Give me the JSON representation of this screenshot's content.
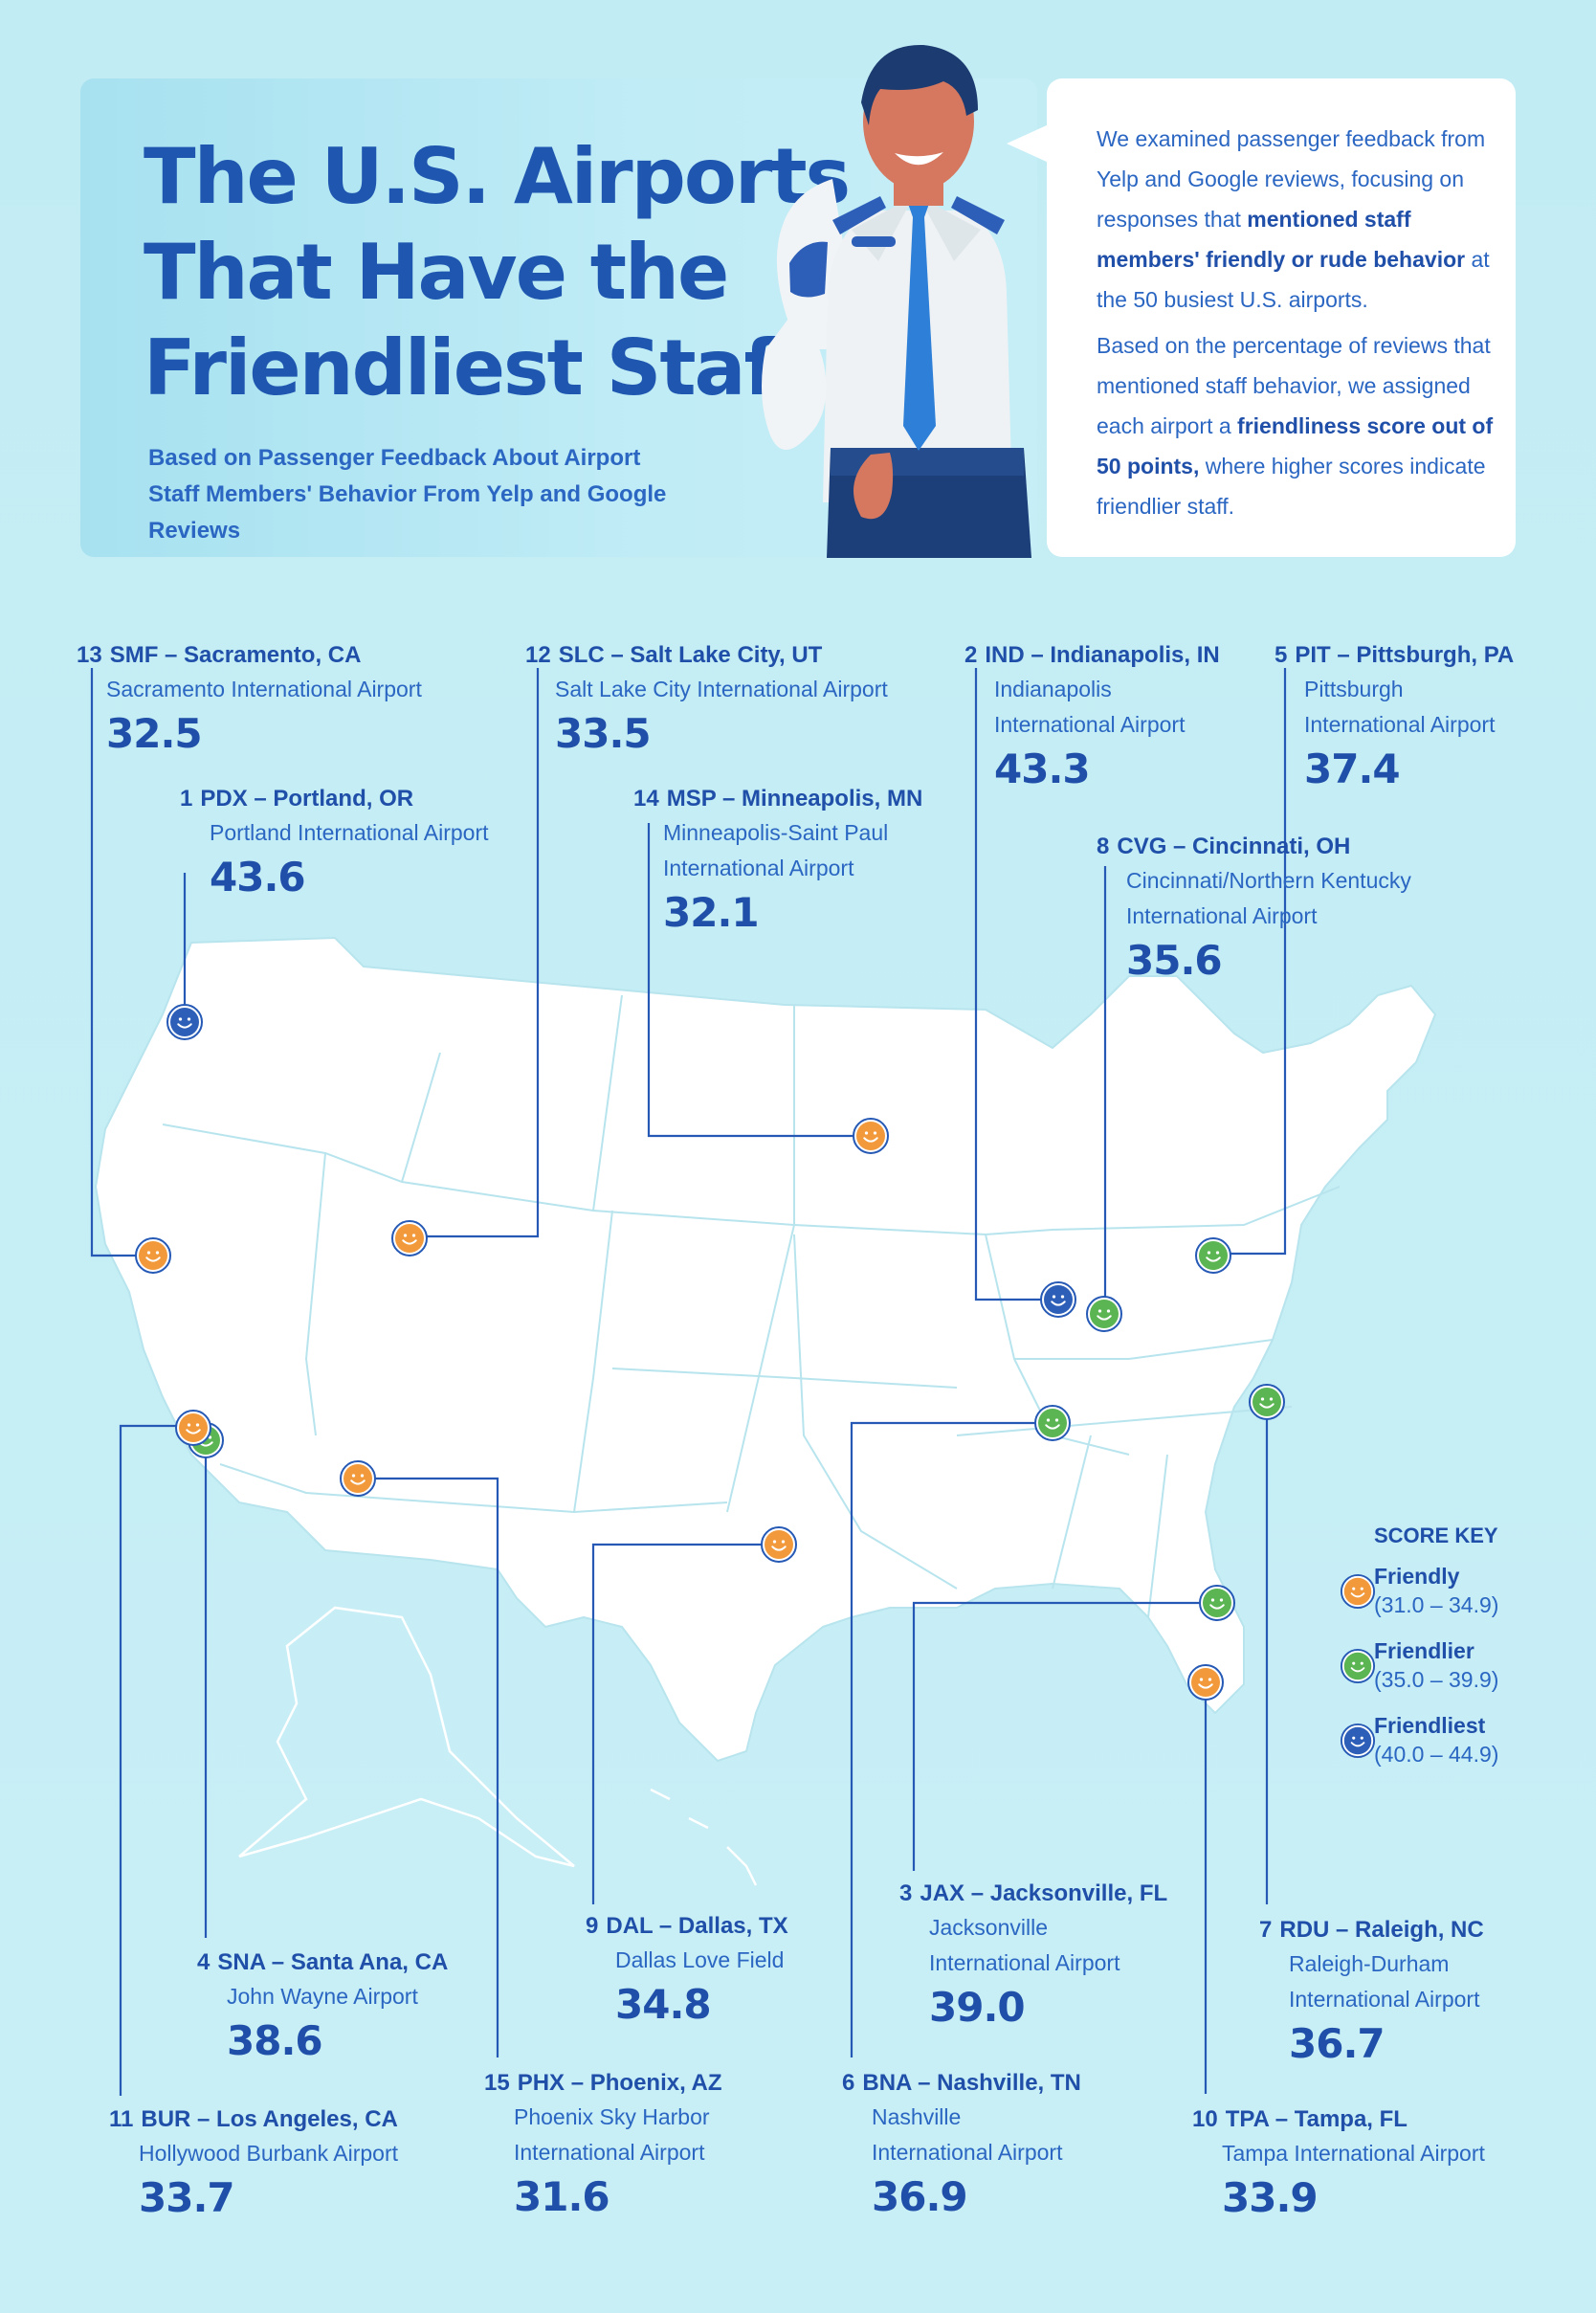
{
  "title_lines": [
    "The U.S. Airports",
    "That Have the",
    "Friendliest Staff"
  ],
  "subtitle": "Based on Passenger Feedback About Airport Staff Members' Behavior From Yelp and Google Reviews",
  "intro": {
    "p1_pre": "We examined passenger feedback from Yelp and Google reviews, focusing on responses that ",
    "p1_bold": "mentioned staff members' friendly or rude behavior",
    "p1_post": " at the 50 busiest U.S. airports.",
    "p2_pre": "Based on the percentage of reviews that mentioned staff behavior, we assigned each airport a ",
    "p2_bold": "friendliness score out of 50 points,",
    "p2_post": " where higher scores indicate friendlier staff."
  },
  "colors": {
    "friendly": "#f29a3b",
    "friendlier": "#5ab552",
    "friendliest": "#2d5fb8",
    "text": "#1f4fa8",
    "map": "#ffffff",
    "background": "#c2ecf4"
  },
  "airports": [
    {
      "rank": "1",
      "head": "PDX – Portland, OR",
      "name": "Portland International Airport",
      "score": "43.6",
      "category": "friendliest"
    },
    {
      "rank": "2",
      "head": "IND – Indianapolis, IN",
      "name": "Indianapolis\nInternational Airport",
      "score": "43.3",
      "category": "friendliest"
    },
    {
      "rank": "3",
      "head": "JAX – Jacksonville, FL",
      "name": "Jacksonville\nInternational Airport",
      "score": "39.0",
      "category": "friendlier"
    },
    {
      "rank": "4",
      "head": "SNA – Santa Ana, CA",
      "name": "John Wayne Airport",
      "score": "38.6",
      "category": "friendlier"
    },
    {
      "rank": "5",
      "head": "PIT – Pittsburgh, PA",
      "name": "Pittsburgh\nInternational Airport",
      "score": "37.4",
      "category": "friendlier"
    },
    {
      "rank": "6",
      "head": "BNA – Nashville, TN",
      "name": "Nashville\nInternational Airport",
      "score": "36.9",
      "category": "friendlier"
    },
    {
      "rank": "7",
      "head": "RDU – Raleigh, NC",
      "name": "Raleigh-Durham\nInternational Airport",
      "score": "36.7",
      "category": "friendlier"
    },
    {
      "rank": "8",
      "head": "CVG – Cincinnati, OH",
      "name": "Cincinnati/Northern Kentucky\nInternational Airport",
      "score": "35.6",
      "category": "friendlier"
    },
    {
      "rank": "9",
      "head": "DAL – Dallas, TX",
      "name": "Dallas Love Field",
      "score": "34.8",
      "category": "friendly"
    },
    {
      "rank": "10",
      "head": "TPA – Tampa, FL",
      "name": "Tampa International Airport",
      "score": "33.9",
      "category": "friendly"
    },
    {
      "rank": "11",
      "head": "BUR – Los Angeles, CA",
      "name": "Hollywood Burbank Airport",
      "score": "33.7",
      "category": "friendly"
    },
    {
      "rank": "12",
      "head": "SLC – Salt Lake City, UT",
      "name": "Salt Lake City International Airport",
      "score": "33.5",
      "category": "friendly"
    },
    {
      "rank": "13",
      "head": "SMF – Sacramento, CA",
      "name": "Sacramento International Airport",
      "score": "32.5",
      "category": "friendly"
    },
    {
      "rank": "14",
      "head": "MSP – Minneapolis, MN",
      "name": "Minneapolis-Saint Paul\nInternational Airport",
      "score": "32.1",
      "category": "friendly"
    },
    {
      "rank": "15",
      "head": "PHX – Phoenix, AZ",
      "name": "Phoenix Sky Harbor\nInternational Airport",
      "score": "31.6",
      "category": "friendly"
    }
  ],
  "score_key": {
    "title": "SCORE KEY",
    "items": [
      {
        "label": "Friendly",
        "range": "(31.0 – 34.9)",
        "category": "friendly"
      },
      {
        "label": "Friendlier",
        "range": "(35.0 – 39.9)",
        "category": "friendlier"
      },
      {
        "label": "Friendliest",
        "range": "(40.0 – 44.9)",
        "category": "friendliest"
      }
    ]
  }
}
